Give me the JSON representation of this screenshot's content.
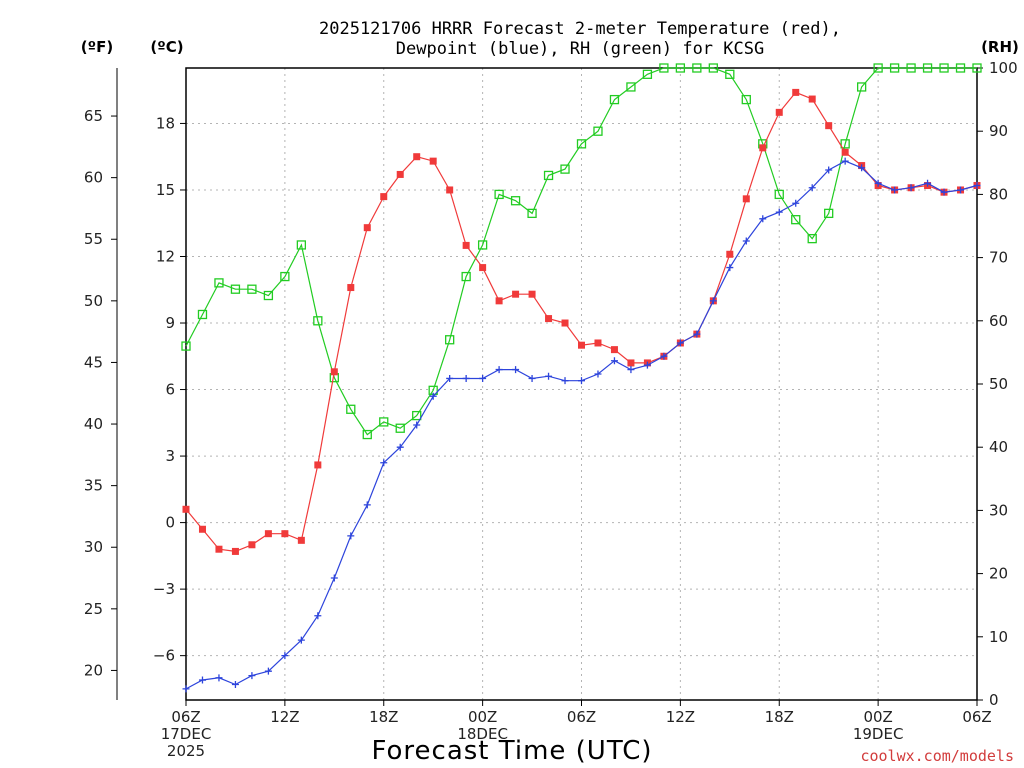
{
  "chart_data": {
    "type": "line",
    "title_lines": [
      "2025121706 HRRR Forecast 2-meter Temperature (red),",
      "Dewpoint (blue), RH (green) for KCSG"
    ],
    "xlabel": "Forecast Time (UTC)",
    "credit": "coolwx.com/models",
    "unit_labels": {
      "left_outer": "(ºF)",
      "left_inner": "(ºC)",
      "right": "(RH)"
    },
    "axes": {
      "x": {
        "range_hours": [
          0,
          48
        ],
        "step_hours": 1
      },
      "celsius": {
        "range": [
          -8,
          20.5
        ],
        "ticks": [
          -6,
          -3,
          0,
          3,
          6,
          9,
          12,
          15,
          18
        ]
      },
      "fahrenheit": {
        "ticks": [
          20,
          25,
          30,
          35,
          40,
          45,
          50,
          55,
          60,
          65
        ]
      },
      "rh": {
        "range": [
          0,
          100
        ],
        "ticks": [
          0,
          10,
          20,
          30,
          40,
          50,
          60,
          70,
          80,
          90,
          100
        ]
      }
    },
    "x_ticks": [
      {
        "hour": 0,
        "lines": [
          "06Z",
          "17DEC",
          "2025"
        ]
      },
      {
        "hour": 6,
        "lines": [
          "12Z"
        ]
      },
      {
        "hour": 12,
        "lines": [
          "18Z"
        ]
      },
      {
        "hour": 18,
        "lines": [
          "00Z",
          "18DEC"
        ]
      },
      {
        "hour": 24,
        "lines": [
          "06Z"
        ]
      },
      {
        "hour": 30,
        "lines": [
          "12Z"
        ]
      },
      {
        "hour": 36,
        "lines": [
          "18Z"
        ]
      },
      {
        "hour": 42,
        "lines": [
          "00Z",
          "19DEC"
        ]
      },
      {
        "hour": 48,
        "lines": [
          "06Z"
        ]
      }
    ],
    "grid": true,
    "series": [
      {
        "name": "Temperature (red)",
        "axis": "celsius",
        "color": "#f03a3a",
        "marker": "filled-square",
        "values": [
          0.6,
          -0.3,
          -1.2,
          -1.3,
          -1.0,
          -0.5,
          -0.5,
          -0.8,
          2.6,
          6.8,
          10.6,
          13.3,
          14.7,
          15.7,
          16.5,
          16.3,
          15.0,
          12.5,
          11.5,
          10.0,
          10.3,
          10.3,
          9.2,
          9.0,
          8.0,
          8.1,
          7.8,
          7.2,
          7.2,
          7.5,
          8.1,
          8.5,
          10.0,
          12.1,
          14.6,
          16.9,
          18.5,
          19.4,
          19.1,
          17.9,
          16.7,
          16.1,
          15.2,
          15.0,
          15.1,
          15.2,
          14.9,
          15.0,
          15.2
        ]
      },
      {
        "name": "Dewpoint (blue)",
        "axis": "celsius",
        "color": "#2d44dc",
        "marker": "plus",
        "values": [
          -7.5,
          -7.1,
          -7.0,
          -7.3,
          -6.9,
          -6.7,
          -6.0,
          -5.3,
          -4.2,
          -2.5,
          -0.6,
          0.8,
          2.7,
          3.4,
          4.4,
          5.7,
          6.5,
          6.5,
          6.5,
          6.9,
          6.9,
          6.5,
          6.6,
          6.4,
          6.4,
          6.7,
          7.3,
          6.9,
          7.1,
          7.5,
          8.1,
          8.5,
          10.0,
          11.5,
          12.7,
          13.7,
          14.0,
          14.4,
          15.1,
          15.9,
          16.3,
          16.0,
          15.3,
          15.0,
          15.1,
          15.3,
          14.9,
          15.0,
          15.2
        ]
      },
      {
        "name": "RH (green)",
        "axis": "rh",
        "color": "#22cc22",
        "marker": "open-square",
        "values": [
          56,
          61,
          66,
          65,
          65,
          64,
          67,
          72,
          60,
          51,
          46,
          42,
          44,
          43,
          45,
          49,
          57,
          67,
          72,
          80,
          79,
          77,
          83,
          84,
          88,
          90,
          95,
          97,
          99,
          100,
          100,
          100,
          100,
          99,
          95,
          88,
          80,
          76,
          73,
          77,
          88,
          97,
          100,
          100,
          100,
          100,
          100,
          100,
          100
        ]
      }
    ]
  }
}
